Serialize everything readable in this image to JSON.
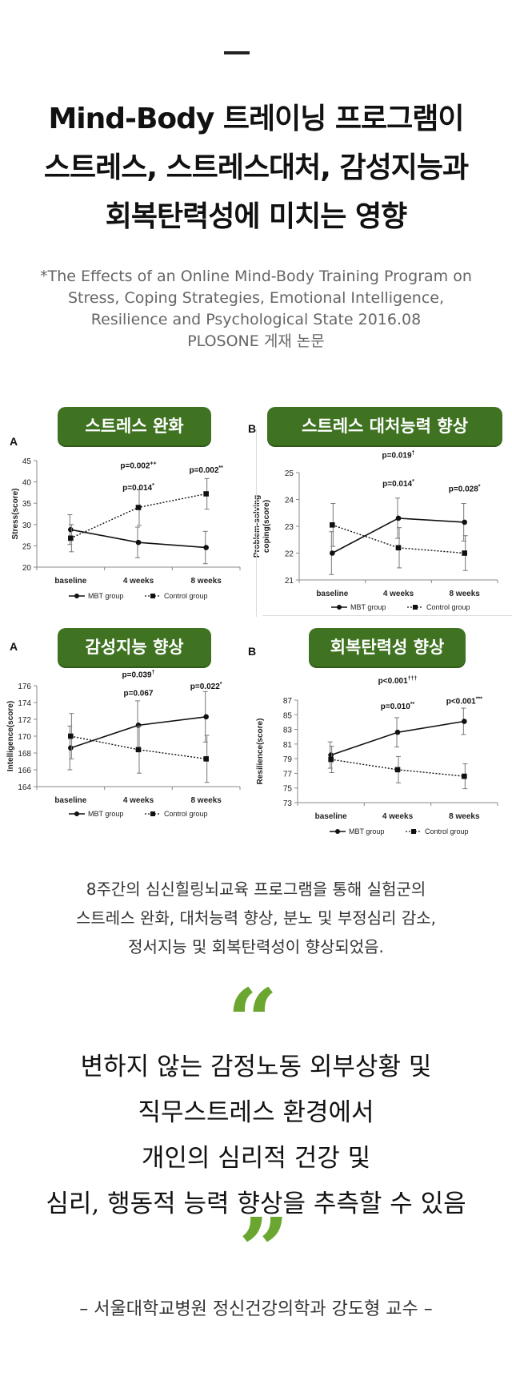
{
  "title": {
    "lines": [
      "Mind-Body 트레이닝 프로그램이",
      "스트레스, 스트레스대처, 감성지능과",
      "회복탄력성에 미치는 영향"
    ]
  },
  "subtitle": {
    "lines": [
      "*The Effects of an Online Mind-Body Training Program on",
      "Stress, Coping Strategies, Emotional Intelligence,",
      "Resilience and Psychological State 2016.08",
      "PLOSONE 게재 논문"
    ]
  },
  "chart_data": [
    {
      "type": "line",
      "badge": "스트레스 완화",
      "panel_letter": "A",
      "ylabel": "Stress(score)",
      "x": [
        "baseline",
        "4 weeks",
        "8 weeks"
      ],
      "ylim": [
        20,
        45
      ],
      "yticks": [
        20,
        25,
        30,
        35,
        40,
        45
      ],
      "series": [
        {
          "name": "MBT group",
          "marker": "circle",
          "dash": "solid",
          "values": [
            28.8,
            25.8,
            24.6
          ],
          "err": [
            3.5,
            3.6,
            3.8
          ]
        },
        {
          "name": "Control group",
          "marker": "square",
          "dash": "dotted",
          "values": [
            26.8,
            34.0,
            37.2
          ],
          "err": [
            3.2,
            4.2,
            3.6
          ]
        }
      ],
      "annotations": [
        {
          "text": "p=0.002",
          "sup": "++",
          "x": 1,
          "y": 43.2
        },
        {
          "text": "p=0.014",
          "sup": "*",
          "x": 1,
          "y": 38.0
        },
        {
          "text": "p=0.002",
          "sup": "**",
          "x": 2,
          "y": 42.2
        }
      ],
      "legend": [
        "MBT group",
        "Control group"
      ]
    },
    {
      "type": "line",
      "badge": "스트레스 대처능력 향상",
      "panel_letter": "B",
      "ylabel": "Problem-solving coping(score)",
      "ylabel_lines": [
        "Problem-solving",
        "coping(score)"
      ],
      "x": [
        "baseline",
        "4 weeks",
        "8 weeks"
      ],
      "ylim": [
        21,
        25
      ],
      "yticks": [
        21,
        22,
        23,
        24,
        25
      ],
      "series": [
        {
          "name": "MBT group",
          "marker": "circle",
          "dash": "solid",
          "values": [
            22.0,
            23.3,
            23.15
          ],
          "err": [
            0.8,
            0.75,
            0.7
          ]
        },
        {
          "name": "Control group",
          "marker": "square",
          "dash": "dotted",
          "values": [
            23.05,
            22.2,
            22.0
          ],
          "err": [
            0.8,
            0.75,
            0.65
          ]
        }
      ],
      "annotations": [
        {
          "text": "p=0.019",
          "sup": "†",
          "x": 1,
          "y": 25.55
        },
        {
          "text": "p=0.014",
          "sup": "*",
          "x": 1,
          "y": 24.5
        },
        {
          "text": "p=0.028",
          "sup": "*",
          "x": 2,
          "y": 24.3
        }
      ],
      "legend": [
        "MBT group",
        "Control group"
      ]
    },
    {
      "type": "line",
      "badge": "감성지능 향상",
      "panel_letter": "A",
      "ylabel": "Intelligence(score)",
      "x": [
        "baseline",
        "4 weeks",
        "8 weeks"
      ],
      "ylim": [
        164,
        176
      ],
      "yticks": [
        164,
        166,
        168,
        170,
        172,
        174,
        176
      ],
      "series": [
        {
          "name": "MBT group",
          "marker": "circle",
          "dash": "solid",
          "values": [
            168.6,
            171.3,
            172.3
          ],
          "err": [
            2.6,
            2.9,
            3.0
          ]
        },
        {
          "name": "Control group",
          "marker": "square",
          "dash": "dotted",
          "values": [
            170.0,
            168.4,
            167.3
          ],
          "err": [
            2.7,
            2.8,
            2.8
          ]
        }
      ],
      "annotations": [
        {
          "text": "p=0.039",
          "sup": "†",
          "x": 1,
          "y": 177.0
        },
        {
          "text": "p=0.067",
          "sup": "",
          "x": 1,
          "y": 174.8
        },
        {
          "text": "p=0.022",
          "sup": "*",
          "x": 2,
          "y": 175.6
        }
      ],
      "legend": [
        "MBT group",
        "Control group"
      ]
    },
    {
      "type": "line",
      "badge": "회복탄력성 향상",
      "panel_letter": "B",
      "ylabel": "Resilience(score)",
      "x": [
        "baseline",
        "4 weeks",
        "8 weeks"
      ],
      "ylim": [
        73,
        87
      ],
      "yticks": [
        73,
        75,
        77,
        79,
        81,
        83,
        85,
        87
      ],
      "series": [
        {
          "name": "MBT group",
          "marker": "circle",
          "dash": "solid",
          "values": [
            79.5,
            82.6,
            84.1
          ],
          "err": [
            1.8,
            2.0,
            1.8
          ]
        },
        {
          "name": "Control group",
          "marker": "square",
          "dash": "dotted",
          "values": [
            78.9,
            77.5,
            76.6
          ],
          "err": [
            1.8,
            1.8,
            1.7
          ]
        }
      ],
      "annotations": [
        {
          "text": "p<0.001",
          "sup": "†††",
          "x": 1,
          "y": 89.3
        },
        {
          "text": "p=0.010",
          "sup": "**",
          "x": 1,
          "y": 85.8
        },
        {
          "text": "p<0.001",
          "sup": "***",
          "x": 2,
          "y": 86.5
        }
      ],
      "legend": [
        "MBT group",
        "Control group"
      ]
    }
  ],
  "description": {
    "lines": [
      "8주간의 심신힐링뇌교육 프로그램을 통해 실험군의",
      "스트레스 완화, 대처능력 향상, 분노 및 부정심리 감소,",
      "정서지능 및 회복탄력성이 향상되었음."
    ]
  },
  "quote": {
    "open_mark": "“",
    "close_mark": "”",
    "lines": [
      "변하지 않는 감정노동 외부상황 및",
      "직무스트레스 환경에서",
      "개인의 심리적 건강 및",
      "심리, 행동적 능력 향상을 추측할 수 있음"
    ]
  },
  "attribution": "– 서울대학교병원 정신건강의학과 강도형 교수 –",
  "colors": {
    "badge": "#3f7322",
    "quote_mark": "#6ba631"
  }
}
